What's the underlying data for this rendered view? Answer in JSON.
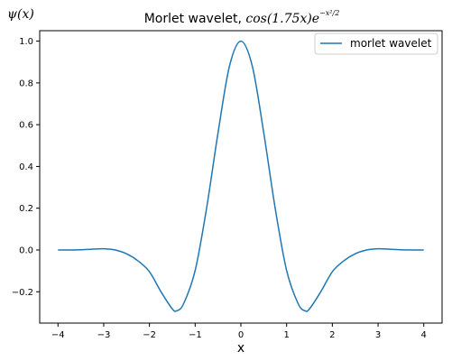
{
  "chart_data": {
    "type": "line",
    "title_text": "Morlet wavelet, ",
    "title_math": "cos(1.75x)e",
    "title_exponent": "−x²/2",
    "xlabel": "x",
    "ylabel": "ψ(x)",
    "xlim": [
      -4.4,
      4.4
    ],
    "ylim": [
      -0.35,
      1.05
    ],
    "x_ticks": [
      -4,
      -3,
      -2,
      -1,
      0,
      1,
      2,
      3,
      4
    ],
    "x_tick_labels": [
      "−4",
      "−3",
      "−2",
      "−1",
      "0",
      "1",
      "2",
      "3",
      "4"
    ],
    "y_ticks": [
      -0.2,
      0.0,
      0.2,
      0.4,
      0.6,
      0.8,
      1.0
    ],
    "y_tick_labels": [
      "−0.2",
      "0.0",
      "0.2",
      "0.4",
      "0.6",
      "0.8",
      "1.0"
    ],
    "grid": false,
    "legend_position": "upper-right",
    "series": [
      {
        "name": "morlet wavelet",
        "color": "#1f77b4",
        "x": [
          -4.0,
          -3.75,
          -3.5,
          -3.25,
          -3.0,
          -2.75,
          -2.5,
          -2.25,
          -2.0,
          -1.75,
          -1.5,
          -1.4,
          -1.25,
          -1.0,
          -0.75,
          -0.5,
          -0.25,
          0.0,
          0.25,
          0.5,
          0.75,
          1.0,
          1.25,
          1.4,
          1.5,
          1.75,
          2.0,
          2.25,
          2.5,
          2.75,
          3.0,
          3.25,
          3.5,
          3.75,
          4.0
        ],
        "y": [
          0.0,
          0.0,
          0.001,
          0.004,
          0.006,
          0.0,
          -0.018,
          -0.052,
          -0.104,
          -0.199,
          -0.282,
          -0.291,
          -0.256,
          -0.098,
          0.2,
          0.561,
          0.88,
          1.0,
          0.88,
          0.561,
          0.2,
          -0.098,
          -0.256,
          -0.291,
          -0.282,
          -0.199,
          -0.104,
          -0.052,
          -0.018,
          0.0,
          0.006,
          0.004,
          0.001,
          0.0,
          0.0
        ]
      }
    ]
  }
}
